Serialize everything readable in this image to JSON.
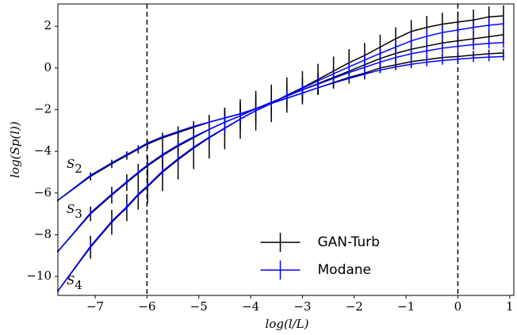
{
  "chart_data": {
    "type": "errorbar-line",
    "xlabel": "log(l/L)",
    "ylabel": "log(Sp(l))",
    "xlim": [
      -7.72,
      1.08
    ],
    "ylim": [
      -10.91,
      3.07
    ],
    "xticks": [
      {
        "value": -7,
        "label": "−7"
      },
      {
        "value": -6,
        "label": "−6"
      },
      {
        "value": -5,
        "label": "−5"
      },
      {
        "value": -4,
        "label": "−4"
      },
      {
        "value": -3,
        "label": "−3"
      },
      {
        "value": -2,
        "label": "−2"
      },
      {
        "value": -1,
        "label": "−1"
      },
      0,
      1
    ],
    "yticks": [
      {
        "value": -10,
        "label": "−10"
      },
      {
        "value": -8,
        "label": "−8"
      },
      {
        "value": -6,
        "label": "−6"
      },
      {
        "value": -4,
        "label": "−4"
      },
      {
        "value": -2,
        "label": "−2"
      },
      0,
      2
    ],
    "vlines": [
      -6,
      0
    ],
    "legend_loc": "lower center",
    "curve_labels": [
      "S2",
      "S3",
      "S4"
    ],
    "x": [
      -7.72,
      -7.09,
      -6.68,
      -6.39,
      -6.17,
      -5.99,
      -5.7,
      -5.4,
      -5.1,
      -4.8,
      -4.5,
      -4.2,
      -3.9,
      -3.6,
      -3.3,
      -3.0,
      -2.7,
      -2.4,
      -2.1,
      -1.8,
      -1.5,
      -1.2,
      -0.9,
      -0.6,
      -0.3,
      0.0,
      0.3,
      0.6,
      0.88
    ],
    "series": [
      {
        "name": "GAN-Turb",
        "color": "#000000",
        "curves": [
          {
            "values": [
              -6.35,
              -5.2,
              -4.6,
              -4.2,
              -3.9,
              -3.65,
              -3.35,
              -3.1,
              -2.85,
              -2.6,
              -2.4,
              -2.2,
              -1.95,
              -1.7,
              -1.45,
              -1.2,
              -0.95,
              -0.7,
              -0.45,
              -0.25,
              0,
              0.15,
              0.3,
              0.4,
              0.5,
              0.55,
              0.62,
              0.68,
              0.72
            ],
            "errors": [
              0.05,
              0.2,
              0.2,
              0.2,
              0.2,
              0.2,
              0.25,
              0.3,
              0.3,
              0.35,
              0.35,
              0.35,
              0.35,
              0.35,
              0.35,
              0.35,
              0.3,
              0.3,
              0.3,
              0.3,
              0.25,
              0.25,
              0.25,
              0.25,
              0.2,
              0.2,
              0.2,
              0.2,
              0.2
            ]
          },
          {
            "values": [
              -8.8,
              -7.0,
              -6.1,
              -5.5,
              -5.05,
              -4.7,
              -4.2,
              -3.75,
              -3.35,
              -2.95,
              -2.6,
              -2.3,
              -1.95,
              -1.65,
              -1.35,
              -1.05,
              -0.75,
              -0.45,
              -0.15,
              0.15,
              0.45,
              0.7,
              0.9,
              1.05,
              1.2,
              1.3,
              1.4,
              1.5,
              1.6
            ],
            "errors": [
              0.05,
              0.35,
              0.4,
              0.4,
              0.45,
              0.5,
              0.6,
              0.6,
              0.65,
              0.65,
              0.65,
              0.65,
              0.65,
              0.6,
              0.6,
              0.55,
              0.5,
              0.5,
              0.45,
              0.45,
              0.45,
              0.4,
              0.4,
              0.4,
              0.4,
              0.35,
              0.35,
              0.35,
              0.35
            ]
          },
          {
            "values": [
              -10.7,
              -8.6,
              -7.4,
              -6.7,
              -6.1,
              -5.7,
              -5.0,
              -4.4,
              -3.85,
              -3.35,
              -2.9,
              -2.45,
              -2.05,
              -1.7,
              -1.3,
              -0.95,
              -0.55,
              -0.15,
              0.25,
              0.6,
              1.0,
              1.4,
              1.75,
              1.95,
              2.1,
              2.2,
              2.3,
              2.45,
              2.5
            ],
            "errors": [
              0.05,
              0.55,
              0.6,
              0.65,
              0.7,
              0.8,
              0.9,
              0.95,
              1.0,
              1.0,
              1.0,
              0.95,
              0.95,
              0.9,
              0.85,
              0.8,
              0.75,
              0.7,
              0.65,
              0.6,
              0.6,
              0.55,
              0.55,
              0.55,
              0.55,
              0.5,
              0.5,
              0.5,
              0.5
            ]
          }
        ]
      },
      {
        "name": "Modane",
        "color": "#0000ff",
        "curves": [
          {
            "values": [
              -6.35,
              -5.15,
              -4.55,
              -4.15,
              -3.85,
              -3.6,
              -3.3,
              -3.05,
              -2.8,
              -2.6,
              -2.4,
              -2.2,
              -1.95,
              -1.7,
              -1.45,
              -1.2,
              -0.95,
              -0.72,
              -0.5,
              -0.3,
              -0.1,
              0.05,
              0.18,
              0.28,
              0.36,
              0.42,
              0.48,
              0.52,
              0.55
            ],
            "errors": [
              0.05,
              0.1,
              0.1,
              0.1,
              0.1,
              0.1,
              0.1,
              0.1,
              0.1,
              0.1,
              0.1,
              0.1,
              0.1,
              0.1,
              0.1,
              0.1,
              0.1,
              0.1,
              0.15,
              0.15,
              0.15,
              0.15,
              0.2,
              0.2,
              0.2,
              0.2,
              0.2,
              0.2,
              0.2
            ]
          },
          {
            "values": [
              -8.8,
              -6.95,
              -6.05,
              -5.45,
              -5.0,
              -4.65,
              -4.15,
              -3.7,
              -3.3,
              -2.95,
              -2.6,
              -2.3,
              -1.95,
              -1.65,
              -1.35,
              -1.05,
              -0.78,
              -0.5,
              -0.22,
              0.03,
              0.28,
              0.5,
              0.68,
              0.82,
              0.95,
              1.04,
              1.12,
              1.18,
              1.22
            ],
            "errors": [
              0.05,
              0.15,
              0.15,
              0.15,
              0.15,
              0.15,
              0.15,
              0.15,
              0.15,
              0.15,
              0.15,
              0.15,
              0.15,
              0.15,
              0.15,
              0.15,
              0.15,
              0.2,
              0.2,
              0.2,
              0.2,
              0.25,
              0.25,
              0.25,
              0.25,
              0.25,
              0.25,
              0.25,
              0.25
            ]
          },
          {
            "values": [
              -10.7,
              -8.55,
              -7.35,
              -6.65,
              -6.05,
              -5.65,
              -4.95,
              -4.35,
              -3.8,
              -3.32,
              -2.88,
              -2.45,
              -2.05,
              -1.7,
              -1.32,
              -0.98,
              -0.62,
              -0.28,
              0.05,
              0.38,
              0.7,
              1.0,
              1.3,
              1.52,
              1.7,
              1.82,
              1.95,
              2.05,
              2.12
            ],
            "errors": [
              0.05,
              0.2,
              0.2,
              0.2,
              0.2,
              0.2,
              0.2,
              0.2,
              0.2,
              0.2,
              0.2,
              0.2,
              0.2,
              0.2,
              0.2,
              0.2,
              0.2,
              0.25,
              0.25,
              0.25,
              0.25,
              0.3,
              0.3,
              0.3,
              0.3,
              0.3,
              0.3,
              0.3,
              0.3
            ]
          }
        ]
      }
    ]
  }
}
